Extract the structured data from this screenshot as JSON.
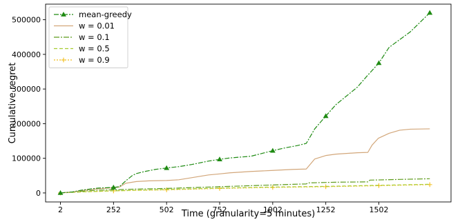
{
  "chart_data": {
    "type": "line",
    "title": "",
    "xlabel": "Time (granularity=5 minutes)",
    "ylabel": "Cumulative regret",
    "xlim": [
      -68,
      1842
    ],
    "ylim": [
      -26000,
      545000
    ],
    "xticks": [
      2,
      252,
      502,
      752,
      1002,
      1252,
      1502
    ],
    "xtick_labels": [
      "2",
      "252",
      "502",
      "752",
      "1002",
      "1252",
      "1502"
    ],
    "yticks": [
      0,
      100000,
      200000,
      300000,
      400000,
      500000
    ],
    "ytick_labels": [
      "0",
      "100000",
      "200000",
      "300000",
      "400000",
      "500000"
    ],
    "grid": false,
    "legend_position": "top-left",
    "series": [
      {
        "name": "mean-greedy",
        "color": "#1e8a12",
        "dash": "7 2 2 2",
        "marker": "triangle",
        "marker_points": [
          [
            2,
            0
          ],
          [
            252,
            16000
          ],
          [
            502,
            72000
          ],
          [
            752,
            97000
          ],
          [
            1002,
            122000
          ],
          [
            1252,
            222000
          ],
          [
            1502,
            375000
          ],
          [
            1742,
            520000
          ]
        ],
        "x": [
          2,
          60,
          100,
          180,
          252,
          280,
          310,
          340,
          360,
          400,
          450,
          502,
          560,
          620,
          700,
          752,
          800,
          900,
          1002,
          1060,
          1120,
          1160,
          1200,
          1252,
          1300,
          1400,
          1450,
          1502,
          1550,
          1650,
          1742
        ],
        "y": [
          0,
          3000,
          8000,
          14000,
          16000,
          18000,
          35000,
          50000,
          56000,
          62000,
          68000,
          72000,
          76000,
          82000,
          92000,
          97000,
          101000,
          106000,
          122000,
          130000,
          137000,
          143000,
          185000,
          222000,
          255000,
          305000,
          340000,
          375000,
          420000,
          465000,
          520000
        ]
      },
      {
        "name": "w = 0.01",
        "color": "#d2a679",
        "dash": "",
        "marker": "none",
        "x": [
          2,
          60,
          100,
          180,
          252,
          280,
          310,
          360,
          420,
          502,
          560,
          620,
          700,
          752,
          800,
          900,
          1002,
          1100,
          1160,
          1200,
          1252,
          1300,
          1400,
          1450,
          1470,
          1500,
          1550,
          1600,
          1650,
          1742
        ],
        "y": [
          0,
          3000,
          7000,
          12000,
          15000,
          17000,
          28000,
          33000,
          35000,
          36000,
          38000,
          44000,
          52000,
          55000,
          58000,
          62000,
          65000,
          68000,
          69000,
          98000,
          108000,
          112000,
          116000,
          117000,
          138000,
          158000,
          172000,
          181000,
          184000,
          185000
        ]
      },
      {
        "name": "w = 0.1",
        "color": "#5c9a1a",
        "dash": "8 2 2 2",
        "marker": "none",
        "x": [
          2,
          60,
          100,
          180,
          252,
          300,
          350,
          502,
          600,
          752,
          900,
          1002,
          1100,
          1160,
          1170,
          1300,
          1450,
          1460,
          1600,
          1742
        ],
        "y": [
          0,
          3000,
          5000,
          8000,
          9000,
          10000,
          11000,
          13000,
          15000,
          18000,
          21000,
          23000,
          25000,
          26000,
          29000,
          31000,
          32000,
          37000,
          39000,
          41000
        ]
      },
      {
        "name": "w = 0.5",
        "color": "#a6cc2e",
        "dash": "5 3",
        "marker": "none",
        "x": [
          2,
          100,
          252,
          502,
          752,
          1002,
          1252,
          1502,
          1742
        ],
        "y": [
          0,
          3000,
          6000,
          10000,
          14000,
          17000,
          19000,
          22000,
          25000
        ]
      },
      {
        "name": "w = 0.9",
        "color": "#f2bd18",
        "dash": "2 2",
        "marker": "plus",
        "marker_points": [
          [
            2,
            0
          ],
          [
            252,
            6000
          ],
          [
            502,
            9000
          ],
          [
            752,
            13000
          ],
          [
            1002,
            16000
          ],
          [
            1252,
            18000
          ],
          [
            1502,
            21000
          ],
          [
            1742,
            24000
          ]
        ],
        "x": [
          2,
          100,
          252,
          502,
          752,
          1002,
          1252,
          1502,
          1742
        ],
        "y": [
          0,
          3000,
          6000,
          9000,
          13000,
          16000,
          18000,
          21000,
          24000
        ]
      }
    ]
  }
}
